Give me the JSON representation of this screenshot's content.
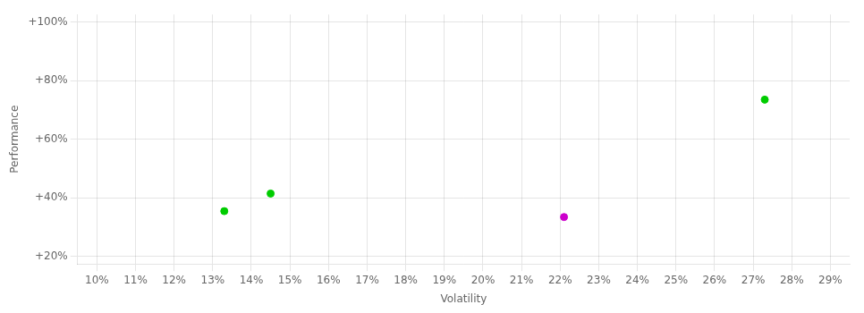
{
  "chart_data": {
    "type": "scatter",
    "xlabel": "Volatility",
    "ylabel": "Performance",
    "x": [
      0.133,
      0.145,
      0.221,
      0.273
    ],
    "values": [
      0.355,
      0.415,
      0.335,
      0.735
    ],
    "colors": [
      "#00cc00",
      "#00cc00",
      "#cc00cc",
      "#00cc00"
    ],
    "xlim": [
      0.095,
      0.295
    ],
    "ylim": [
      0.175,
      1.025
    ],
    "xticks": [
      {
        "value": 0.1,
        "label": "10%"
      },
      {
        "value": 0.11,
        "label": "11%"
      },
      {
        "value": 0.12,
        "label": "12%"
      },
      {
        "value": 0.13,
        "label": "13%"
      },
      {
        "value": 0.14,
        "label": "14%"
      },
      {
        "value": 0.15,
        "label": "15%"
      },
      {
        "value": 0.16,
        "label": "16%"
      },
      {
        "value": 0.17,
        "label": "17%"
      },
      {
        "value": 0.18,
        "label": "18%"
      },
      {
        "value": 0.19,
        "label": "19%"
      },
      {
        "value": 0.2,
        "label": "20%"
      },
      {
        "value": 0.21,
        "label": "21%"
      },
      {
        "value": 0.22,
        "label": "22%"
      },
      {
        "value": 0.23,
        "label": "23%"
      },
      {
        "value": 0.24,
        "label": "24%"
      },
      {
        "value": 0.25,
        "label": "25%"
      },
      {
        "value": 0.26,
        "label": "26%"
      },
      {
        "value": 0.27,
        "label": "27%"
      },
      {
        "value": 0.28,
        "label": "28%"
      },
      {
        "value": 0.29,
        "label": "29%"
      }
    ],
    "yticks": [
      {
        "value": 0.2,
        "label": "+20%"
      },
      {
        "value": 0.4,
        "label": "+40%"
      },
      {
        "value": 0.6,
        "label": "+60%"
      },
      {
        "value": 0.8,
        "label": "+80%"
      },
      {
        "value": 1.0,
        "label": "+100%"
      }
    ],
    "grid": true
  }
}
